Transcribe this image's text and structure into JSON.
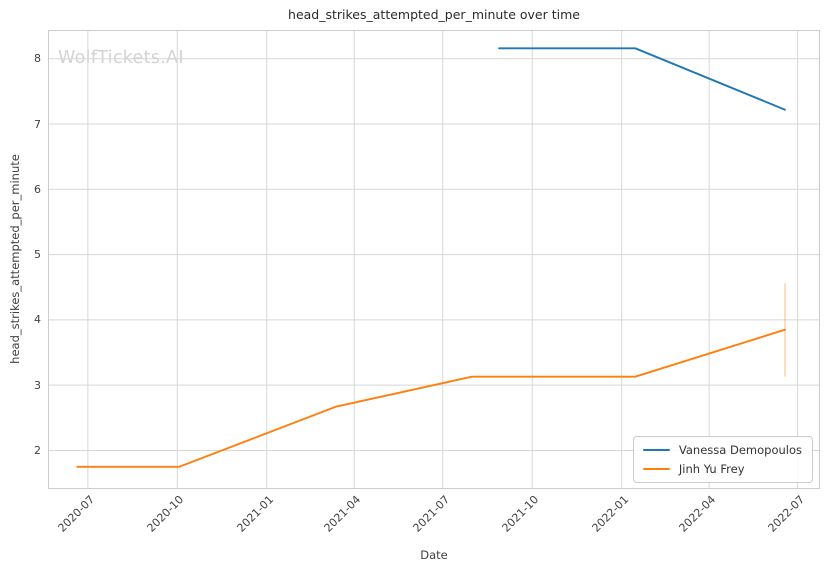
{
  "title": "head_strikes_attempted_per_minute over time",
  "watermark": "WolfTickets.AI",
  "axes": {
    "x_label": "Date",
    "y_label": "head_strikes_attempted_per_minute"
  },
  "chart_data": {
    "type": "line",
    "title": "head_strikes_attempted_per_minute over time",
    "xlabel": "Date",
    "ylabel": "head_strikes_attempted_per_minute",
    "grid": true,
    "legend_position": "lower right",
    "xlim": [
      "2020-05-21",
      "2022-07-24"
    ],
    "ylim": [
      1.41,
      8.44
    ],
    "x_ticks": [
      "2020-07",
      "2020-10",
      "2021-01",
      "2021-04",
      "2021-07",
      "2021-10",
      "2022-01",
      "2022-04",
      "2022-07"
    ],
    "y_ticks": [
      2,
      3,
      4,
      5,
      6,
      7,
      8
    ],
    "colors": {
      "grid": "#d7d7d7",
      "spine": "#cccccc",
      "watermark": "#d3d3d3"
    },
    "series": [
      {
        "name": "Vanessa Demopoulos",
        "color": "#1f77b4",
        "points": [
          [
            "2021-08-28",
            8.16
          ],
          [
            "2022-01-15",
            8.16
          ],
          [
            "2022-06-18",
            7.22
          ]
        ]
      },
      {
        "name": "Jinh Yu Frey",
        "color": "#ff7f0e",
        "points": [
          [
            "2020-06-20",
            1.75
          ],
          [
            "2020-10-03",
            1.75
          ],
          [
            "2021-03-13",
            2.67
          ],
          [
            "2021-07-31",
            3.13
          ],
          [
            "2022-01-15",
            3.13
          ],
          [
            "2022-06-18",
            3.85
          ]
        ],
        "error_bars": [
          {
            "x": "2022-06-18",
            "y_low": 3.13,
            "y_high": 4.56
          }
        ]
      }
    ]
  }
}
